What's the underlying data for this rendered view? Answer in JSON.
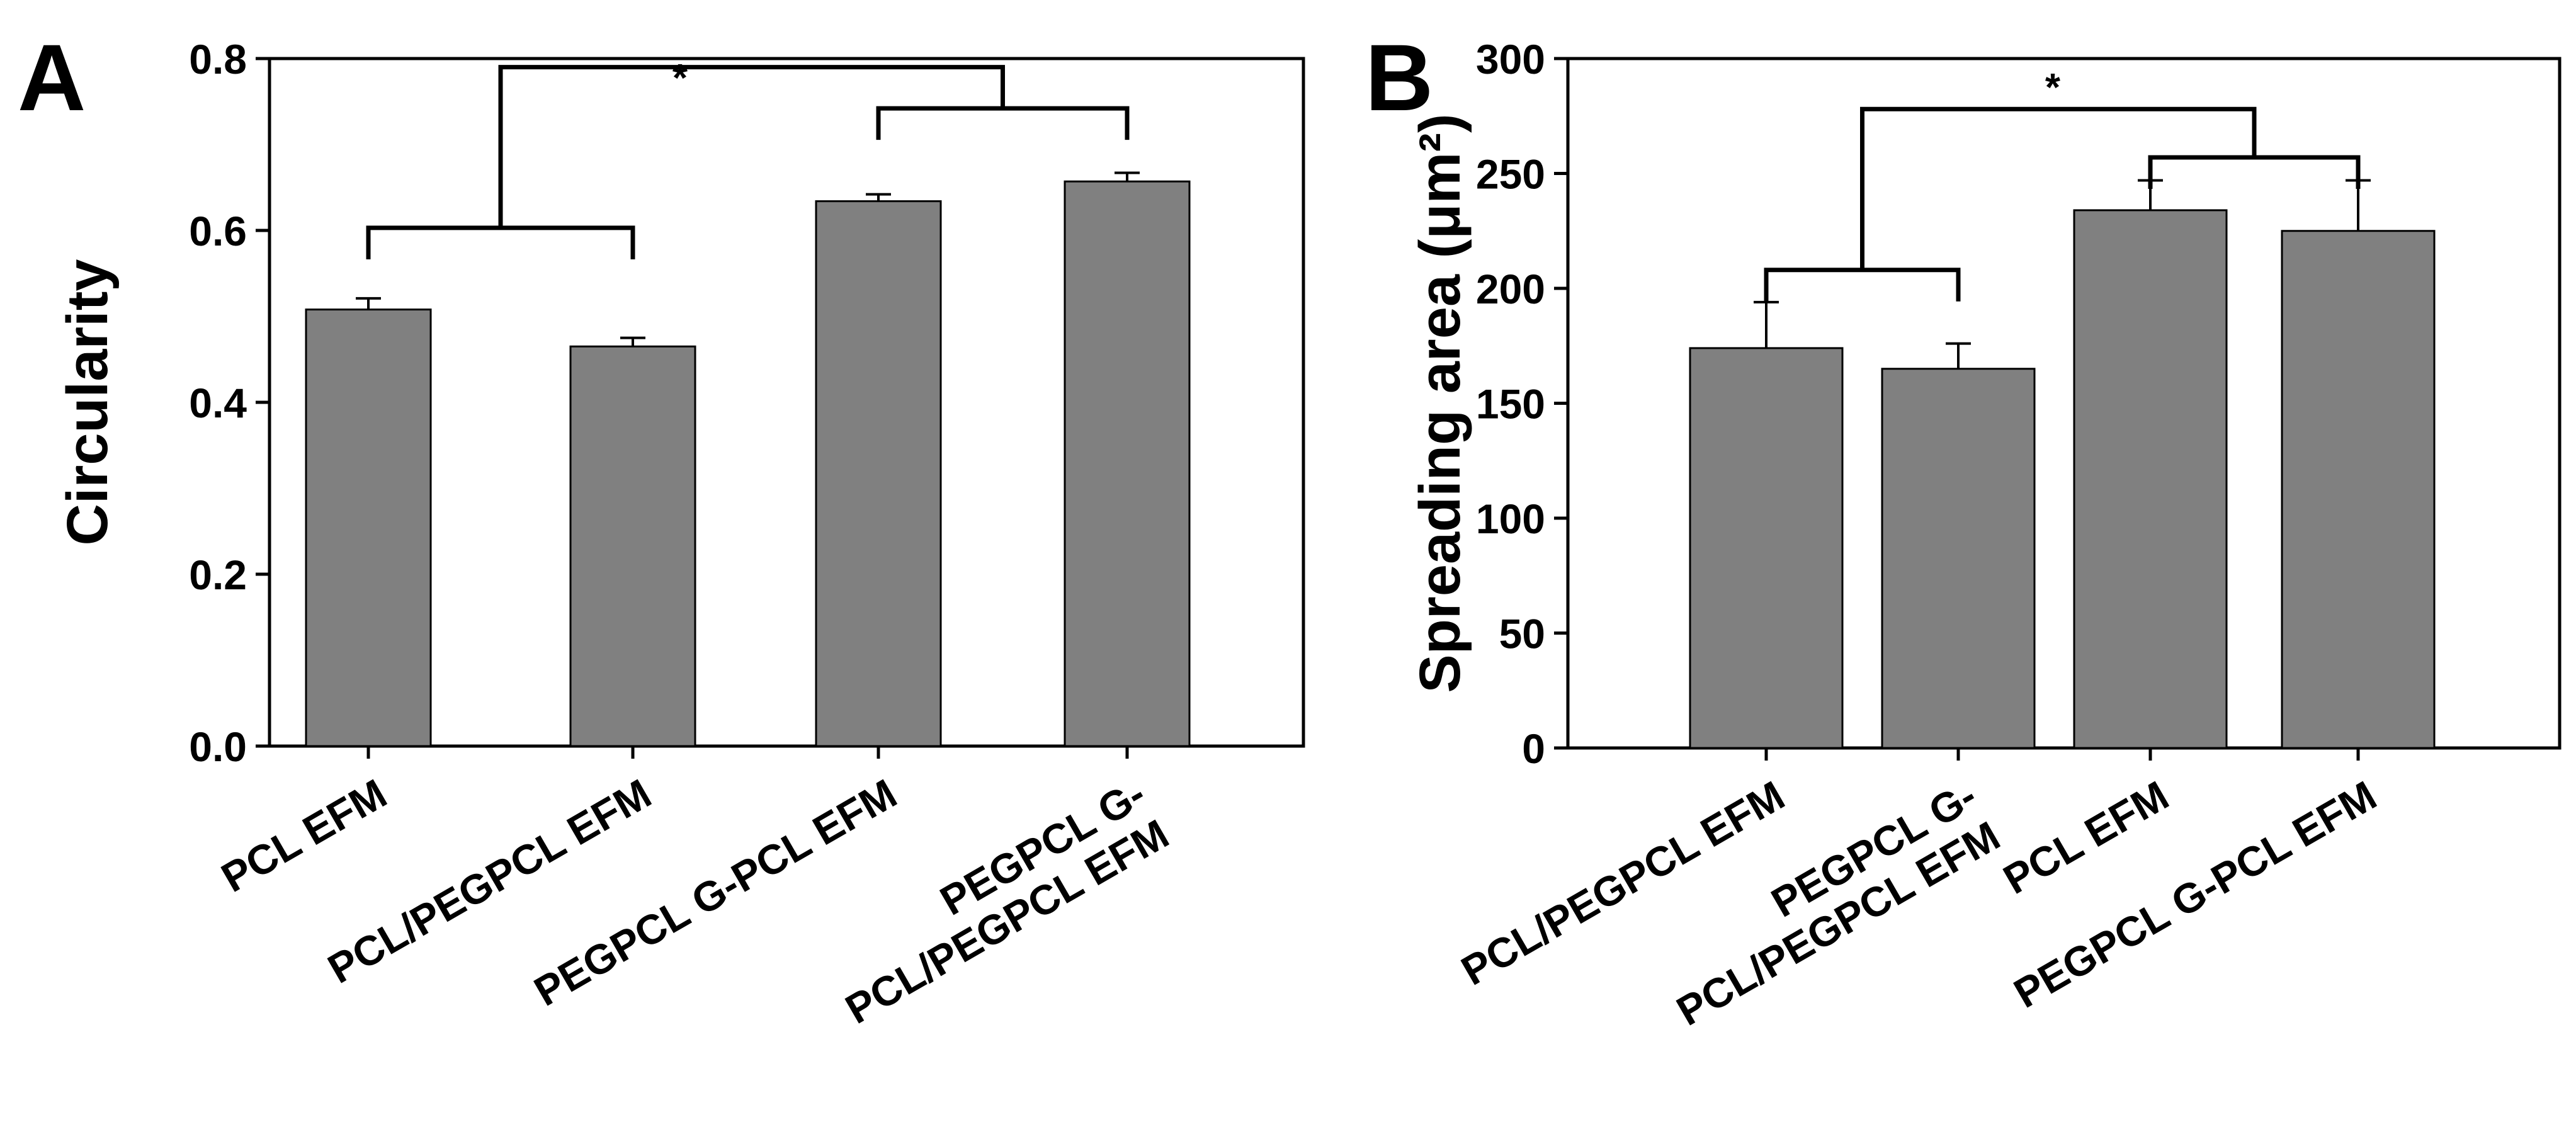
{
  "chart_data": [
    {
      "panel_label": "A",
      "type": "bar",
      "ylabel": "Circularity",
      "ylim": [
        0,
        0.8
      ],
      "yticks": [
        "0.0",
        "0.2",
        "0.4",
        "0.6",
        "0.8"
      ],
      "categories": [
        [
          "PCL EFM"
        ],
        [
          "PCL/PEGPCL EFM"
        ],
        [
          "PEGPCL G-PCL EFM"
        ],
        [
          "PEGPCL G-",
          "PCL/PEGPCL EFM"
        ]
      ],
      "values": [
        0.508,
        0.465,
        0.634,
        0.657
      ],
      "errors": [
        0.013,
        0.01,
        0.008,
        0.01
      ],
      "significance": "*"
    },
    {
      "panel_label": "B",
      "type": "bar",
      "ylabel": "Spreading area (μm²)",
      "ylim": [
        0,
        300
      ],
      "yticks": [
        "0",
        "50",
        "100",
        "150",
        "200",
        "250",
        "300"
      ],
      "categories": [
        [
          "PCL/PEGPCL EFM"
        ],
        [
          "PEGPCL G-",
          "PCL/PEGPCL EFM"
        ],
        [
          "PCL EFM"
        ],
        [
          "PEGPCL G-PCL EFM"
        ]
      ],
      "values": [
        174,
        165,
        234,
        225
      ],
      "errors": [
        20,
        11,
        13,
        22
      ],
      "significance": "*"
    }
  ]
}
